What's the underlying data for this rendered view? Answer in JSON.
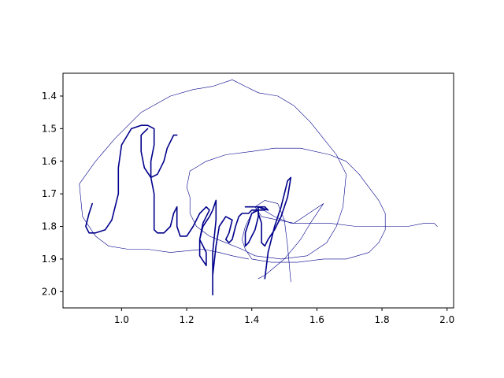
{
  "chart_data": {
    "type": "line",
    "title": "",
    "xlabel": "",
    "ylabel": "",
    "xlim": [
      0.82,
      2.02
    ],
    "ylim": [
      2.05,
      1.33
    ],
    "y_inverted": true,
    "grid": false,
    "legend": "none",
    "xticks": [
      1.0,
      1.2,
      1.4,
      1.6,
      1.8,
      2.0
    ],
    "xtick_labels": [
      "1.0",
      "1.2",
      "1.4",
      "1.6",
      "1.8",
      "2.0"
    ],
    "yticks": [
      1.4,
      1.5,
      1.6,
      1.7,
      1.8,
      1.9,
      2.0
    ],
    "ytick_labels": [
      "1.4",
      "1.5",
      "1.6",
      "1.7",
      "1.8",
      "1.9",
      "2.0"
    ],
    "colors": {
      "stroke": "#00008b"
    },
    "series": [
      {
        "style": "thin",
        "points": [
          [
            1.39,
            1.9
          ],
          [
            1.34,
            1.89
          ],
          [
            1.3,
            1.88
          ],
          [
            1.25,
            1.87
          ],
          [
            1.15,
            1.88
          ],
          [
            1.08,
            1.87
          ],
          [
            1.02,
            1.87
          ],
          [
            0.96,
            1.86
          ],
          [
            0.92,
            1.83
          ],
          [
            0.88,
            1.77
          ],
          [
            0.87,
            1.67
          ],
          [
            0.92,
            1.6
          ],
          [
            0.98,
            1.53
          ],
          [
            1.06,
            1.45
          ],
          [
            1.15,
            1.4
          ],
          [
            1.22,
            1.38
          ],
          [
            1.28,
            1.37
          ],
          [
            1.34,
            1.35
          ],
          [
            1.38,
            1.37
          ],
          [
            1.42,
            1.39
          ],
          [
            1.48,
            1.4
          ],
          [
            1.53,
            1.43
          ],
          [
            1.58,
            1.48
          ],
          [
            1.62,
            1.53
          ],
          [
            1.66,
            1.58
          ],
          [
            1.69,
            1.64
          ],
          [
            1.68,
            1.74
          ],
          [
            1.66,
            1.8
          ],
          [
            1.63,
            1.85
          ],
          [
            1.57,
            1.89
          ],
          [
            1.49,
            1.9
          ],
          [
            1.41,
            1.89
          ],
          [
            1.37,
            1.87
          ],
          [
            1.32,
            1.85
          ],
          [
            1.27,
            1.83
          ],
          [
            1.23,
            1.8
          ],
          [
            1.21,
            1.76
          ],
          [
            1.21,
            1.71
          ],
          [
            1.2,
            1.68
          ],
          [
            1.21,
            1.63
          ],
          [
            1.26,
            1.6
          ],
          [
            1.32,
            1.58
          ],
          [
            1.4,
            1.57
          ],
          [
            1.47,
            1.56
          ],
          [
            1.55,
            1.56
          ],
          [
            1.64,
            1.58
          ],
          [
            1.69,
            1.6
          ],
          [
            1.73,
            1.64
          ],
          [
            1.76,
            1.68
          ],
          [
            1.79,
            1.72
          ],
          [
            1.81,
            1.76
          ],
          [
            1.81,
            1.81
          ],
          [
            1.79,
            1.85
          ],
          [
            1.76,
            1.88
          ],
          [
            1.69,
            1.9
          ],
          [
            1.62,
            1.9
          ],
          [
            1.54,
            1.91
          ],
          [
            1.46,
            1.91
          ],
          [
            1.4,
            1.9
          ],
          [
            1.38,
            1.87
          ],
          [
            1.37,
            1.84
          ],
          [
            1.38,
            1.8
          ],
          [
            1.4,
            1.76
          ],
          [
            1.42,
            1.74
          ],
          [
            1.47,
            1.77
          ],
          [
            1.52,
            1.79
          ],
          [
            1.58,
            1.79
          ],
          [
            1.64,
            1.79
          ],
          [
            1.72,
            1.8
          ],
          [
            1.8,
            1.8
          ],
          [
            1.88,
            1.8
          ],
          [
            1.93,
            1.79
          ],
          [
            1.96,
            1.79
          ],
          [
            1.97,
            1.8
          ]
        ]
      },
      {
        "style": "thin",
        "points": [
          [
            1.52,
            1.97
          ],
          [
            1.51,
            1.86
          ],
          [
            1.5,
            1.78
          ],
          [
            1.48,
            1.73
          ],
          [
            1.44,
            1.72
          ],
          [
            1.41,
            1.74
          ],
          [
            1.43,
            1.77
          ],
          [
            1.48,
            1.78
          ],
          [
            1.53,
            1.79
          ],
          [
            1.56,
            1.77
          ],
          [
            1.59,
            1.75
          ],
          [
            1.62,
            1.73
          ]
        ]
      },
      {
        "style": "thin",
        "points": [
          [
            1.62,
            1.73
          ],
          [
            1.58,
            1.79
          ],
          [
            1.55,
            1.84
          ],
          [
            1.5,
            1.9
          ],
          [
            1.44,
            1.95
          ],
          [
            1.42,
            1.96
          ]
        ]
      },
      {
        "style": "thick",
        "points": [
          [
            0.91,
            1.73
          ],
          [
            0.9,
            1.76
          ],
          [
            0.89,
            1.8
          ],
          [
            0.9,
            1.82
          ],
          [
            0.92,
            1.82
          ],
          [
            0.95,
            1.81
          ],
          [
            0.97,
            1.78
          ],
          [
            0.99,
            1.7
          ],
          [
            0.99,
            1.62
          ],
          [
            1.0,
            1.55
          ],
          [
            1.03,
            1.5
          ],
          [
            1.06,
            1.49
          ],
          [
            1.08,
            1.49
          ],
          [
            1.1,
            1.5
          ],
          [
            1.1,
            1.55
          ],
          [
            1.09,
            1.6
          ],
          [
            1.09,
            1.65
          ],
          [
            1.1,
            1.7
          ],
          [
            1.1,
            1.76
          ],
          [
            1.1,
            1.81
          ],
          [
            1.11,
            1.82
          ],
          [
            1.13,
            1.82
          ],
          [
            1.15,
            1.8
          ],
          [
            1.16,
            1.76
          ],
          [
            1.17,
            1.74
          ]
        ]
      },
      {
        "style": "thick",
        "points": [
          [
            1.17,
            1.52
          ],
          [
            1.16,
            1.52
          ],
          [
            1.14,
            1.56
          ],
          [
            1.13,
            1.6
          ],
          [
            1.11,
            1.64
          ],
          [
            1.09,
            1.65
          ],
          [
            1.07,
            1.62
          ],
          [
            1.06,
            1.57
          ],
          [
            1.06,
            1.52
          ],
          [
            1.08,
            1.5
          ]
        ]
      },
      {
        "style": "thick",
        "points": [
          [
            1.17,
            1.74
          ],
          [
            1.17,
            1.8
          ],
          [
            1.18,
            1.83
          ],
          [
            1.2,
            1.83
          ],
          [
            1.22,
            1.8
          ],
          [
            1.24,
            1.76
          ],
          [
            1.26,
            1.74
          ],
          [
            1.27,
            1.75
          ],
          [
            1.25,
            1.79
          ],
          [
            1.24,
            1.84
          ],
          [
            1.24,
            1.89
          ],
          [
            1.26,
            1.92
          ],
          [
            1.26,
            1.88
          ],
          [
            1.24,
            1.84
          ],
          [
            1.25,
            1.8
          ],
          [
            1.27,
            1.77
          ],
          [
            1.28,
            1.75
          ],
          [
            1.29,
            1.72
          ],
          [
            1.29,
            1.78
          ],
          [
            1.28,
            1.88
          ],
          [
            1.28,
            1.95
          ],
          [
            1.28,
            2.01
          ],
          [
            1.28,
            1.95
          ],
          [
            1.29,
            1.86
          ],
          [
            1.3,
            1.8
          ],
          [
            1.32,
            1.77
          ],
          [
            1.34,
            1.78
          ],
          [
            1.33,
            1.82
          ],
          [
            1.32,
            1.84
          ],
          [
            1.33,
            1.85
          ],
          [
            1.34,
            1.84
          ],
          [
            1.35,
            1.8
          ],
          [
            1.36,
            1.77
          ],
          [
            1.37,
            1.76
          ],
          [
            1.39,
            1.76
          ],
          [
            1.4,
            1.75
          ],
          [
            1.42,
            1.75
          ],
          [
            1.42,
            1.77
          ],
          [
            1.41,
            1.81
          ],
          [
            1.4,
            1.83
          ],
          [
            1.39,
            1.85
          ],
          [
            1.38,
            1.86
          ],
          [
            1.38,
            1.82
          ],
          [
            1.39,
            1.79
          ],
          [
            1.4,
            1.76
          ],
          [
            1.42,
            1.75
          ],
          [
            1.44,
            1.75
          ]
        ]
      },
      {
        "style": "thick",
        "points": [
          [
            1.44,
            1.96
          ],
          [
            1.45,
            1.88
          ],
          [
            1.47,
            1.8
          ],
          [
            1.49,
            1.74
          ],
          [
            1.5,
            1.7
          ],
          [
            1.51,
            1.66
          ],
          [
            1.52,
            1.65
          ],
          [
            1.51,
            1.71
          ],
          [
            1.49,
            1.77
          ],
          [
            1.47,
            1.81
          ],
          [
            1.45,
            1.84
          ],
          [
            1.44,
            1.86
          ],
          [
            1.43,
            1.85
          ],
          [
            1.43,
            1.79
          ],
          [
            1.42,
            1.76
          ],
          [
            1.42,
            1.74
          ],
          [
            1.44,
            1.74
          ],
          [
            1.45,
            1.75
          ],
          [
            1.42,
            1.74
          ],
          [
            1.39,
            1.74
          ],
          [
            1.38,
            1.74
          ]
        ]
      }
    ]
  }
}
